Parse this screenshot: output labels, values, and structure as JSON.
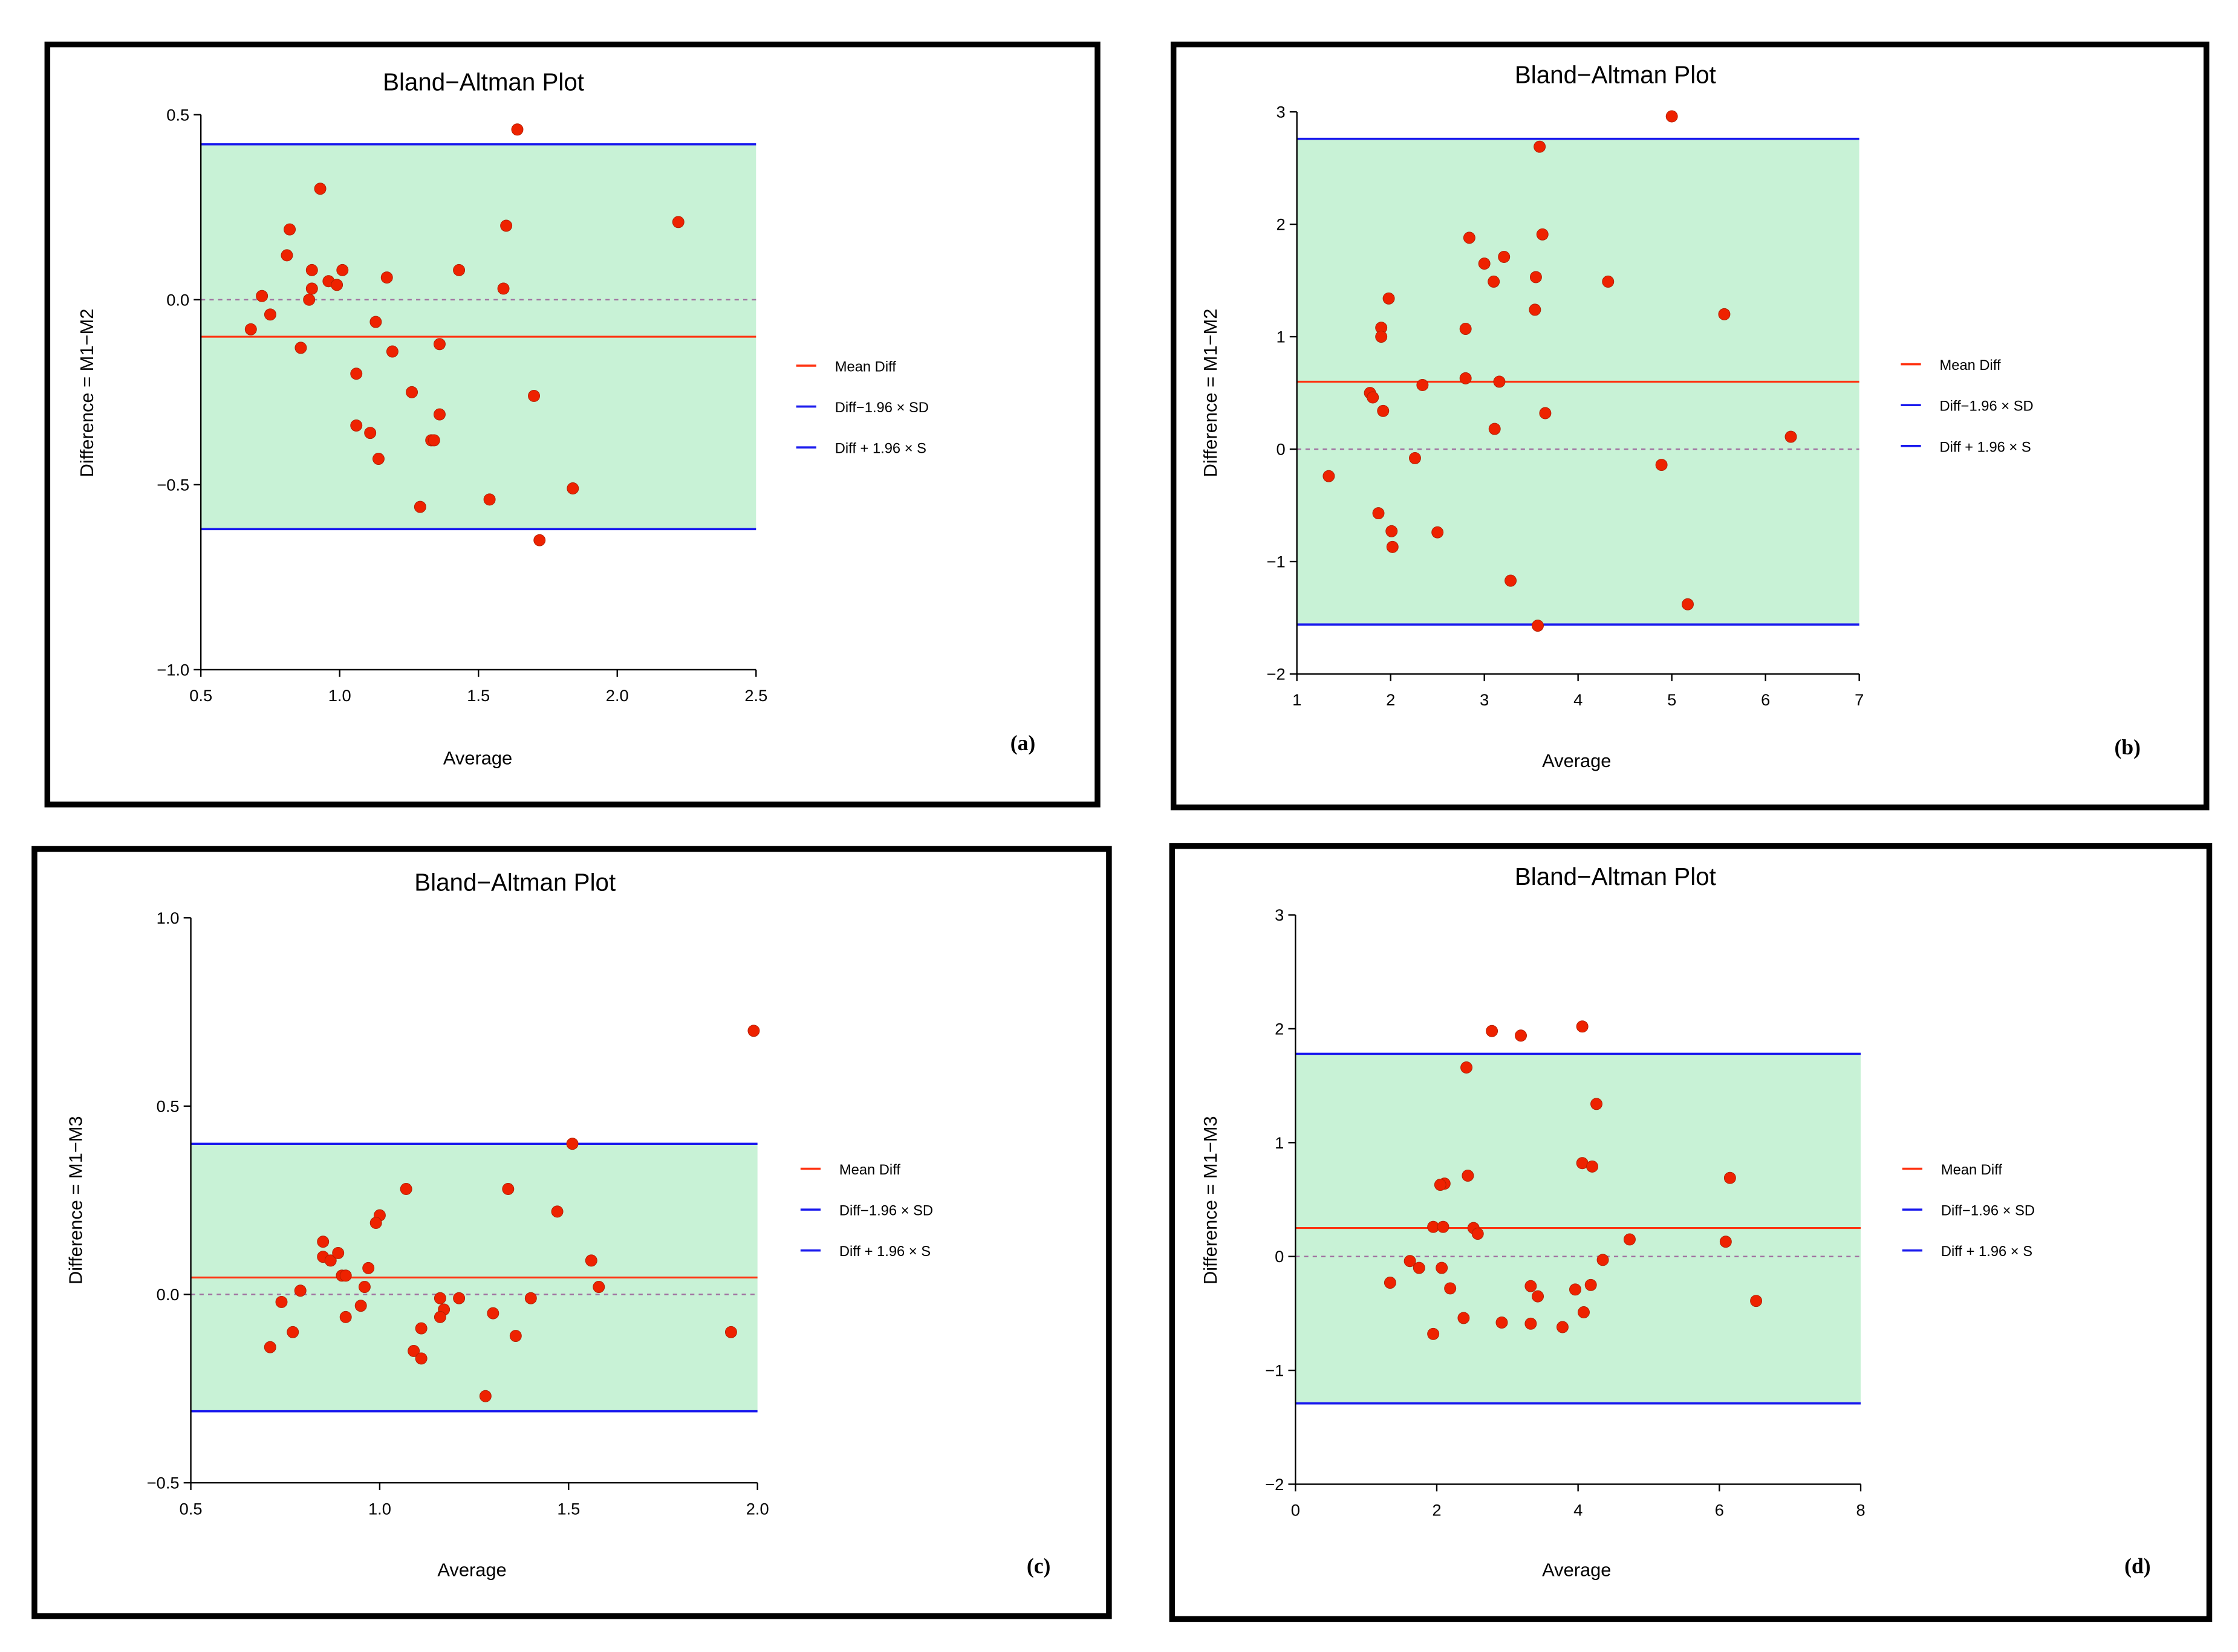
{
  "colors": {
    "band": "#c8f2d6",
    "limit_line": "#1a1aee",
    "mean_line": "#ff3311",
    "zero_line": "#a070a0",
    "point": "#ee2200"
  },
  "legend": [
    "Mean Diff",
    "Diff−1.96 × SD",
    "Diff + 1.96 × S"
  ],
  "chart_data": [
    {
      "type": "scatter",
      "panel_label": "(a)",
      "title": "Bland−Altman Plot",
      "xlabel": "Average",
      "ylabel": "Difference = M1−M2",
      "xlim": [
        0.5,
        2.5
      ],
      "ylim": [
        -1.0,
        0.5
      ],
      "xticks": [
        "0.5",
        "1.0",
        "1.5",
        "2.0",
        "2.5"
      ],
      "yticks": [
        "−1.0",
        "−0.5",
        "0.0",
        "0.5"
      ],
      "xtick_values": [
        0.5,
        1.0,
        1.5,
        2.0,
        2.5
      ],
      "ytick_values": [
        -1.0,
        -0.5,
        0.0,
        0.5
      ],
      "mean_diff": -0.1,
      "lower_limit": -0.62,
      "upper_limit": 0.42,
      "points": [
        [
          1.64,
          0.46
        ],
        [
          0.93,
          0.3
        ],
        [
          0.82,
          0.19
        ],
        [
          0.81,
          0.12
        ],
        [
          0.72,
          0.01
        ],
        [
          0.68,
          -0.08
        ],
        [
          0.75,
          -0.04
        ],
        [
          0.9,
          0.08
        ],
        [
          0.9,
          0.03
        ],
        [
          0.89,
          0.0
        ],
        [
          0.86,
          -0.13
        ],
        [
          0.96,
          0.05
        ],
        [
          0.99,
          0.04
        ],
        [
          1.01,
          0.08
        ],
        [
          1.17,
          0.06
        ],
        [
          1.13,
          -0.06
        ],
        [
          1.06,
          -0.2
        ],
        [
          1.19,
          -0.14
        ],
        [
          1.06,
          -0.34
        ],
        [
          1.11,
          -0.36
        ],
        [
          1.14,
          -0.43
        ],
        [
          1.26,
          -0.25
        ],
        [
          1.33,
          -0.38
        ],
        [
          1.34,
          -0.38
        ],
        [
          1.36,
          -0.31
        ],
        [
          1.36,
          -0.12
        ],
        [
          1.43,
          0.08
        ],
        [
          1.29,
          -0.56
        ],
        [
          1.6,
          0.2
        ],
        [
          1.59,
          0.03
        ],
        [
          1.7,
          -0.26
        ],
        [
          1.84,
          -0.51
        ],
        [
          1.54,
          -0.54
        ],
        [
          1.72,
          -0.65
        ],
        [
          2.22,
          0.21
        ]
      ]
    },
    {
      "type": "scatter",
      "panel_label": "(b)",
      "title": "Bland−Altman Plot",
      "xlabel": "Average",
      "ylabel": "Difference = M1−M2",
      "xlim": [
        1,
        7
      ],
      "ylim": [
        -2,
        3
      ],
      "xticks": [
        "1",
        "2",
        "3",
        "4",
        "5",
        "6",
        "7"
      ],
      "yticks": [
        "−2",
        "−1",
        "0",
        "1",
        "2",
        "3"
      ],
      "xtick_values": [
        1,
        2,
        3,
        4,
        5,
        6,
        7
      ],
      "ytick_values": [
        -2,
        -1,
        0,
        1,
        2,
        3
      ],
      "mean_diff": 0.6,
      "lower_limit": -1.56,
      "upper_limit": 2.76,
      "points": [
        [
          5.0,
          2.96
        ],
        [
          3.59,
          2.69
        ],
        [
          3.62,
          1.91
        ],
        [
          2.84,
          1.88
        ],
        [
          3.21,
          1.71
        ],
        [
          3.0,
          1.65
        ],
        [
          3.1,
          1.49
        ],
        [
          3.55,
          1.53
        ],
        [
          4.32,
          1.49
        ],
        [
          3.54,
          1.24
        ],
        [
          5.56,
          1.2
        ],
        [
          1.98,
          1.34
        ],
        [
          1.9,
          1.08
        ],
        [
          1.9,
          1.0
        ],
        [
          2.8,
          1.07
        ],
        [
          2.8,
          0.63
        ],
        [
          3.16,
          0.6
        ],
        [
          2.34,
          0.57
        ],
        [
          1.78,
          0.5
        ],
        [
          1.81,
          0.46
        ],
        [
          1.92,
          0.34
        ],
        [
          3.65,
          0.32
        ],
        [
          3.11,
          0.18
        ],
        [
          6.27,
          0.11
        ],
        [
          2.26,
          -0.08
        ],
        [
          1.34,
          -0.24
        ],
        [
          4.89,
          -0.14
        ],
        [
          1.87,
          -0.57
        ],
        [
          2.01,
          -0.73
        ],
        [
          2.02,
          -0.87
        ],
        [
          2.5,
          -0.74
        ],
        [
          3.28,
          -1.17
        ],
        [
          5.17,
          -1.38
        ],
        [
          3.57,
          -1.57
        ]
      ]
    },
    {
      "type": "scatter",
      "panel_label": "(c)",
      "title": "Bland−Altman Plot",
      "xlabel": "Average",
      "ylabel": "Difference = M1−M3",
      "xlim": [
        0.5,
        2.0
      ],
      "ylim": [
        -0.5,
        1.0
      ],
      "xticks": [
        "0.5",
        "1.0",
        "1.5",
        "2.0"
      ],
      "yticks": [
        "−0.5",
        "0.0",
        "0.5",
        "1.0"
      ],
      "xtick_values": [
        0.5,
        1.0,
        1.5,
        2.0
      ],
      "ytick_values": [
        -0.5,
        0.0,
        0.5,
        1.0
      ],
      "mean_diff": 0.045,
      "lower_limit": -0.31,
      "upper_limit": 0.4,
      "points": [
        [
          1.99,
          0.7
        ],
        [
          1.51,
          0.4
        ],
        [
          1.07,
          0.28
        ],
        [
          1.34,
          0.28
        ],
        [
          1.47,
          0.22
        ],
        [
          1.0,
          0.21
        ],
        [
          0.99,
          0.19
        ],
        [
          0.85,
          0.14
        ],
        [
          0.85,
          0.1
        ],
        [
          0.87,
          0.09
        ],
        [
          0.89,
          0.11
        ],
        [
          0.9,
          0.05
        ],
        [
          0.91,
          0.05
        ],
        [
          0.97,
          0.07
        ],
        [
          1.56,
          0.09
        ],
        [
          1.58,
          0.02
        ],
        [
          0.79,
          0.01
        ],
        [
          0.74,
          -0.02
        ],
        [
          0.96,
          0.02
        ],
        [
          0.95,
          -0.03
        ],
        [
          0.91,
          -0.06
        ],
        [
          1.16,
          -0.01
        ],
        [
          1.21,
          -0.01
        ],
        [
          1.4,
          -0.01
        ],
        [
          1.17,
          -0.04
        ],
        [
          1.16,
          -0.06
        ],
        [
          1.3,
          -0.05
        ],
        [
          0.77,
          -0.1
        ],
        [
          1.11,
          -0.09
        ],
        [
          1.36,
          -0.11
        ],
        [
          0.71,
          -0.14
        ],
        [
          1.09,
          -0.15
        ],
        [
          1.11,
          -0.17
        ],
        [
          1.28,
          -0.27
        ],
        [
          1.93,
          -0.1
        ]
      ]
    },
    {
      "type": "scatter",
      "panel_label": "(d)",
      "title": "Bland−Altman Plot",
      "xlabel": "Average",
      "ylabel": "Difference = M1−M3",
      "xlim": [
        0,
        8
      ],
      "ylim": [
        -2,
        3
      ],
      "xticks": [
        "0",
        "2",
        "4",
        "6",
        "8"
      ],
      "yticks": [
        "−2",
        "−1",
        "0",
        "1",
        "2",
        "3"
      ],
      "xtick_values": [
        0,
        2,
        4,
        6,
        8
      ],
      "ytick_values": [
        -2,
        -1,
        0,
        1,
        2,
        3
      ],
      "mean_diff": 0.25,
      "lower_limit": -1.29,
      "upper_limit": 1.78,
      "points": [
        [
          2.78,
          1.98
        ],
        [
          3.19,
          1.94
        ],
        [
          4.06,
          2.02
        ],
        [
          2.42,
          1.66
        ],
        [
          4.26,
          1.34
        ],
        [
          4.06,
          0.82
        ],
        [
          4.2,
          0.79
        ],
        [
          6.15,
          0.69
        ],
        [
          2.44,
          0.71
        ],
        [
          2.11,
          0.64
        ],
        [
          2.05,
          0.63
        ],
        [
          1.95,
          0.26
        ],
        [
          2.09,
          0.26
        ],
        [
          2.52,
          0.25
        ],
        [
          2.58,
          0.2
        ],
        [
          4.73,
          0.15
        ],
        [
          6.09,
          0.13
        ],
        [
          1.62,
          -0.04
        ],
        [
          1.75,
          -0.1
        ],
        [
          2.07,
          -0.1
        ],
        [
          4.35,
          -0.03
        ],
        [
          1.34,
          -0.23
        ],
        [
          2.19,
          -0.28
        ],
        [
          3.33,
          -0.26
        ],
        [
          3.43,
          -0.35
        ],
        [
          3.96,
          -0.29
        ],
        [
          4.18,
          -0.25
        ],
        [
          6.52,
          -0.39
        ],
        [
          2.38,
          -0.54
        ],
        [
          2.92,
          -0.58
        ],
        [
          3.33,
          -0.59
        ],
        [
          3.78,
          -0.62
        ],
        [
          4.08,
          -0.49
        ],
        [
          1.95,
          -0.68
        ]
      ]
    }
  ]
}
